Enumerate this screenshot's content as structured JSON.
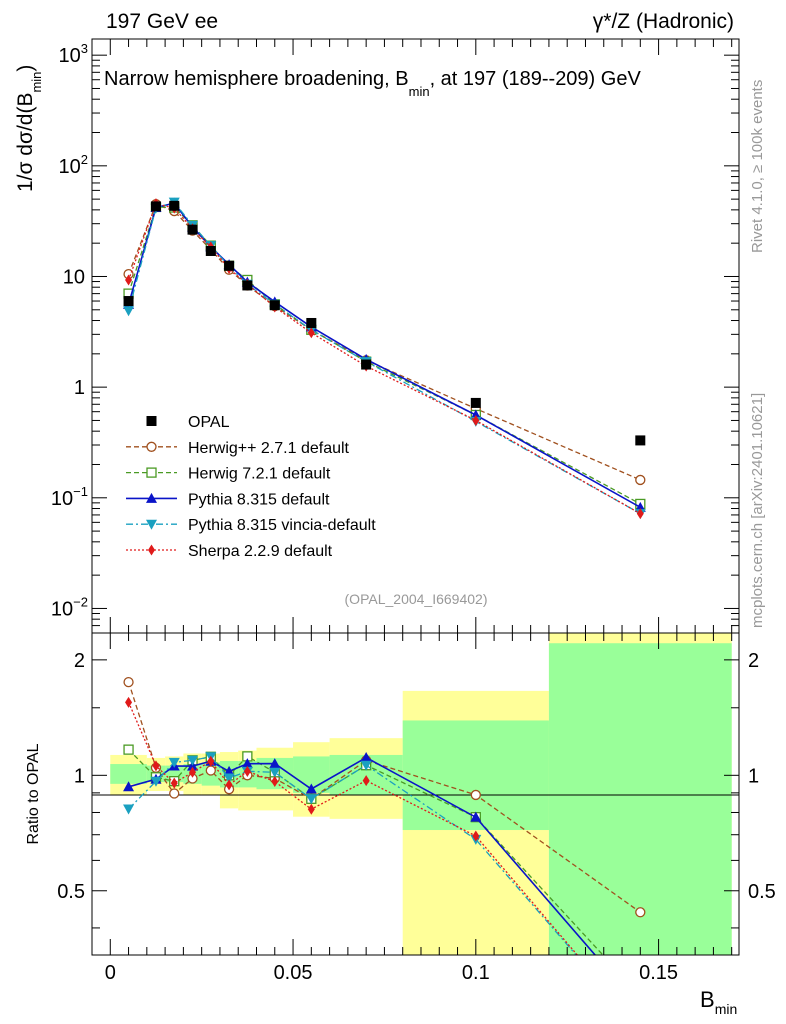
{
  "header": {
    "left": "197 GeV ee",
    "right": "γ*/Z (Hadronic)"
  },
  "side_labels": {
    "rivet": "Rivet 4.1.0, ≥ 100k events",
    "mcplots": "mcplots.cern.ch [arXiv:2401.10621]"
  },
  "chart_data": {
    "type": "line",
    "title": "Narrow hemisphere broadening, B_min, at 197 (189--209) GeV",
    "title_parts": {
      "main": "Narrow hemisphere broadening, B",
      "sub": "min",
      "tail": ", at 197 (189--209) GeV"
    },
    "watermark": "(OPAL_2004_I669402)",
    "xlabel": {
      "main": "B",
      "sub": "min"
    },
    "ylabel": {
      "main": "1/σ  dσ/d(B",
      "sub": "min",
      "tail": ")"
    },
    "ratio_ylabel": "Ratio to OPAL",
    "xlim": [
      -0.005,
      0.172
    ],
    "ylim": [
      0.006,
      1400
    ],
    "yscale": "log",
    "ratio_ylim": [
      0.34,
      2.35
    ],
    "ratio_yscale": "log",
    "x_ticks": [
      {
        "v": 0,
        "label": "0"
      },
      {
        "v": 0.05,
        "label": "0.05"
      },
      {
        "v": 0.1,
        "label": "0.1"
      },
      {
        "v": 0.15,
        "label": "0.15"
      }
    ],
    "y_ticks": [
      {
        "v": 0.01,
        "base": "10",
        "exp": "−2"
      },
      {
        "v": 0.1,
        "base": "10",
        "exp": "−1"
      },
      {
        "v": 1,
        "base": "1",
        "exp": ""
      },
      {
        "v": 10,
        "base": "10",
        "exp": ""
      },
      {
        "v": 100,
        "base": "10",
        "exp": "2"
      },
      {
        "v": 1000,
        "base": "10",
        "exp": "3"
      }
    ],
    "ratio_ticks": [
      {
        "v": 0.5,
        "label": "0.5"
      },
      {
        "v": 1,
        "label": "1"
      },
      {
        "v": 2,
        "label": "2"
      }
    ],
    "x": [
      0.005,
      0.0125,
      0.0175,
      0.0225,
      0.0275,
      0.0325,
      0.0375,
      0.045,
      0.055,
      0.07,
      0.1,
      0.145
    ],
    "bin_edges": [
      0,
      0.01,
      0.015,
      0.02,
      0.025,
      0.03,
      0.035,
      0.04,
      0.05,
      0.06,
      0.08,
      0.12,
      0.17
    ],
    "band_inner": [
      [
        0.95,
        1.07
      ],
      [
        0.96,
        1.06
      ],
      [
        0.96,
        1.06
      ],
      [
        0.95,
        1.07
      ],
      [
        0.94,
        1.08
      ],
      [
        0.93,
        1.09
      ],
      [
        0.93,
        1.09
      ],
      [
        0.92,
        1.11
      ],
      [
        0.9,
        1.12
      ],
      [
        0.89,
        1.13
      ],
      [
        0.72,
        1.39
      ],
      [
        0.34,
        2.21
      ]
    ],
    "band_outer": [
      [
        0.89,
        1.13
      ],
      [
        0.91,
        1.11
      ],
      [
        0.91,
        1.12
      ],
      [
        0.89,
        1.14
      ],
      [
        0.89,
        1.14
      ],
      [
        0.82,
        1.15
      ],
      [
        0.81,
        1.16
      ],
      [
        0.81,
        1.18
      ],
      [
        0.78,
        1.22
      ],
      [
        0.77,
        1.25
      ],
      [
        0.34,
        1.66
      ],
      [
        0.34,
        2.35
      ]
    ],
    "data_series": {
      "name": "OPAL",
      "color": "#000000",
      "values": [
        6.0,
        43.0,
        43.5,
        26.5,
        17.0,
        12.5,
        8.3,
        5.5,
        3.8,
        1.6,
        0.72,
        0.33
      ]
    },
    "series": [
      {
        "name": "Herwig++ 2.7.1 default",
        "color": "#a0501e",
        "marker": "circle-open",
        "dash": "5,3",
        "values": [
          10.5,
          45.0,
          39.0,
          26.0,
          17.5,
          11.5,
          8.3,
          5.4,
          3.3,
          1.75,
          0.64,
          0.145
        ]
      },
      {
        "name": "Herwig 7.2.1 default",
        "color": "#4a9a24",
        "marker": "square-open",
        "dash": "5,3",
        "values": [
          7.0,
          42.5,
          42.0,
          29.0,
          19.0,
          12.5,
          9.3,
          5.6,
          3.3,
          1.7,
          0.56,
          0.088
        ]
      },
      {
        "name": "Pythia 8.315 default",
        "color": "#0a14c8",
        "marker": "triangle-up",
        "dash": "",
        "values": [
          5.6,
          42.0,
          46.0,
          28.0,
          18.5,
          12.8,
          8.9,
          5.9,
          3.5,
          1.78,
          0.56,
          0.082
        ]
      },
      {
        "name": "Pythia 8.315 vincia-default",
        "color": "#1aa0c0",
        "marker": "triangle-down",
        "dash": "7,3,2,3",
        "values": [
          4.9,
          41.5,
          47.0,
          29.0,
          19.0,
          12.3,
          8.5,
          5.6,
          3.3,
          1.7,
          0.49,
          0.072
        ]
      },
      {
        "name": "Sherpa 2.2.9 default",
        "color": "#e01a1a",
        "marker": "diamond",
        "dash": "2,2",
        "values": [
          9.3,
          45.5,
          41.5,
          27.0,
          18.5,
          11.8,
          8.5,
          5.3,
          3.1,
          1.55,
          0.5,
          0.072
        ]
      }
    ]
  }
}
